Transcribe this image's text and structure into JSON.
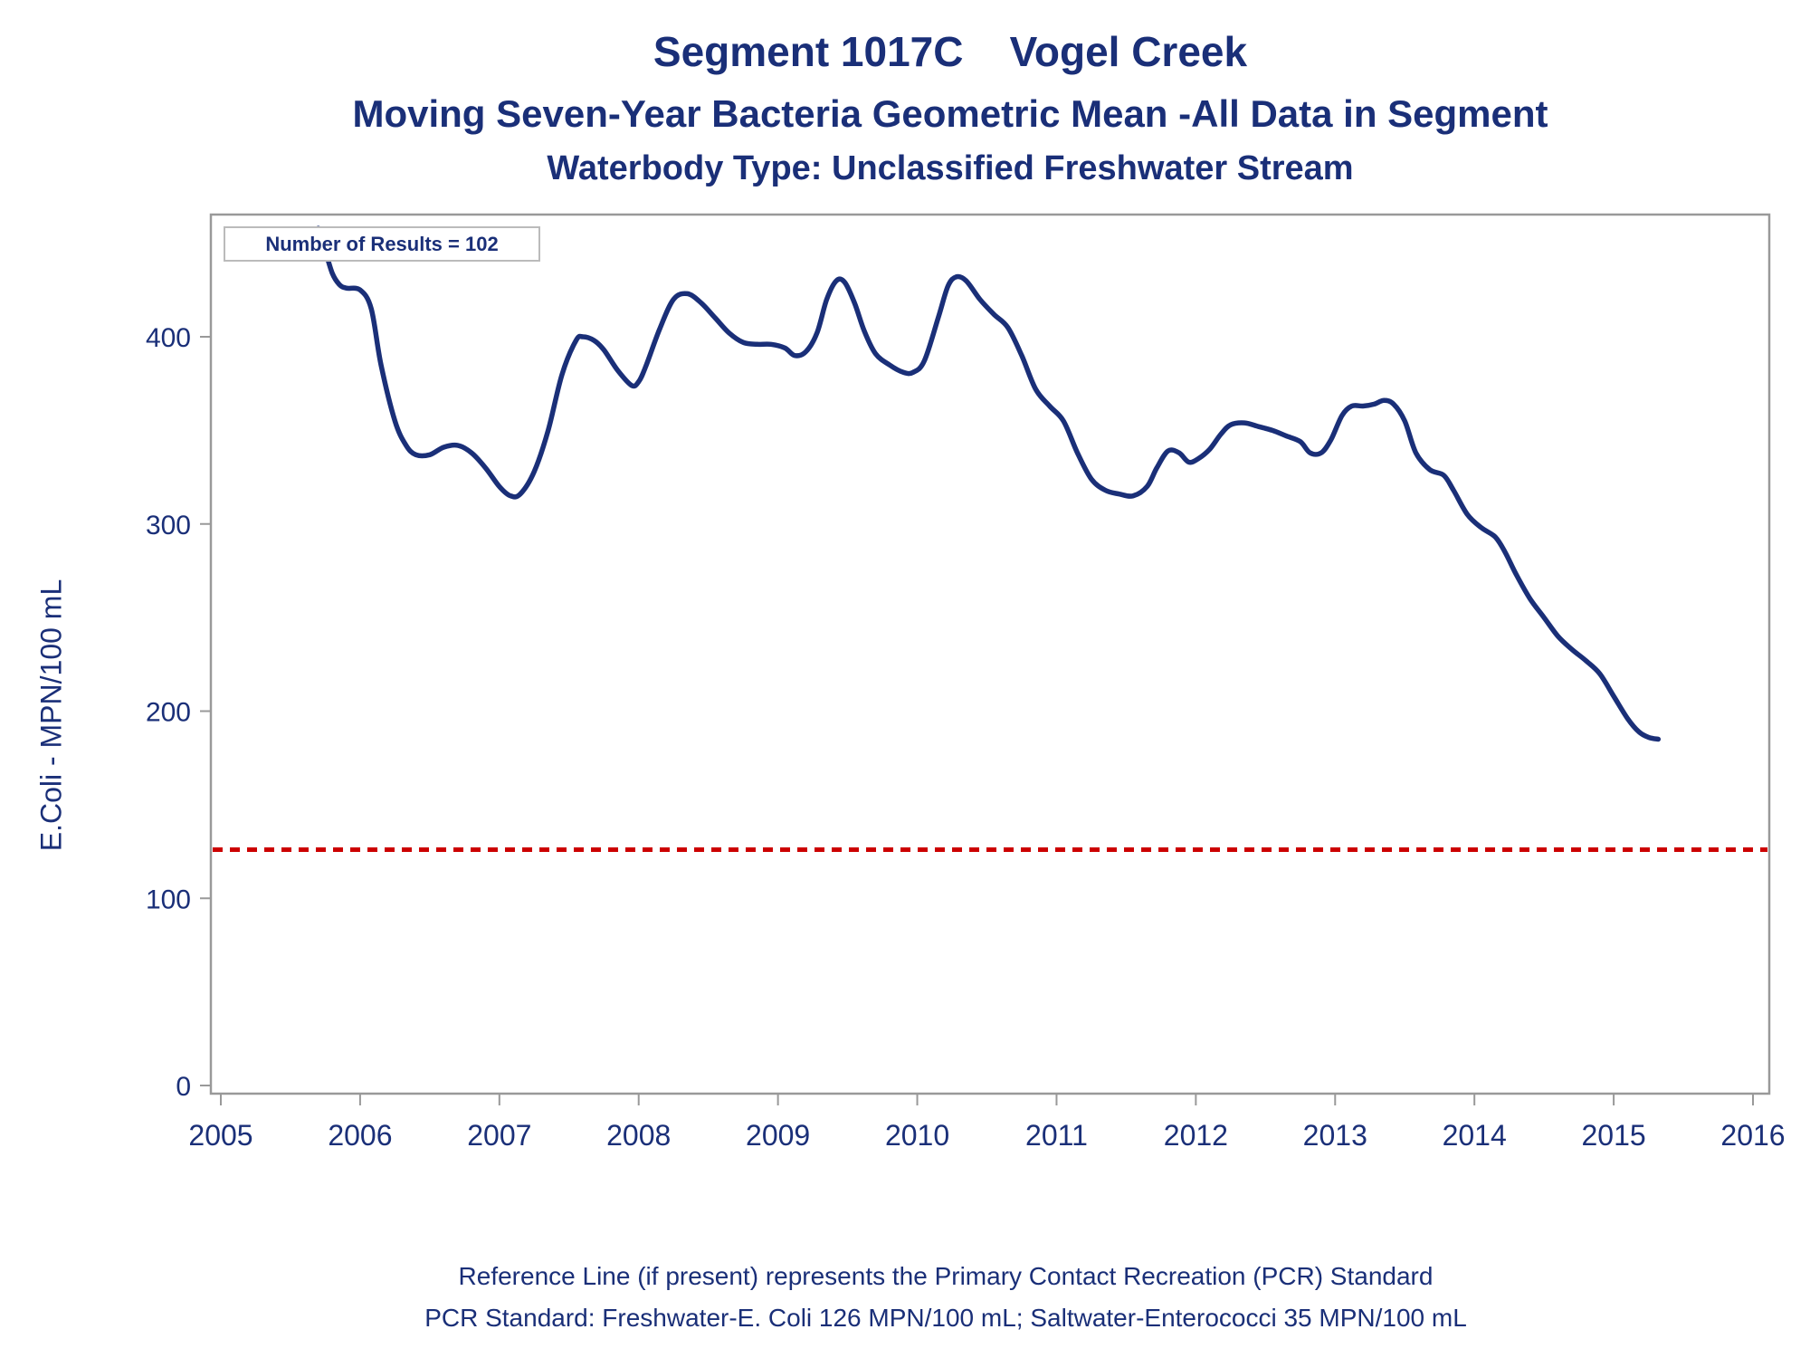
{
  "chart_data": {
    "type": "line",
    "title": "Segment 1017C    Vogel Creek",
    "subtitle": "Moving Seven-Year Bacteria Geometric Mean -All Data in Segment",
    "subtitle2": "Waterbody Type: Unclassified Freshwater Stream",
    "xlabel": "",
    "ylabel": "E.Coli - MPN/100 mL",
    "xlim": [
      2005,
      2016
    ],
    "ylim": [
      -5,
      465
    ],
    "x_ticks": [
      "2005",
      "2006",
      "2007",
      "2008",
      "2009",
      "2010",
      "2011",
      "2012",
      "2013",
      "2014",
      "2015",
      "2016"
    ],
    "y_ticks": [
      "0",
      "100",
      "200",
      "300",
      "400"
    ],
    "annotation": "Number of Results = 102",
    "reference_line": {
      "y": 126,
      "color": "#cc0000",
      "style": "dashed"
    },
    "series": [
      {
        "color": "#1a2f78",
        "points": [
          [
            2005.7,
            458
          ],
          [
            2005.75,
            446
          ],
          [
            2005.8,
            434
          ],
          [
            2005.85,
            428
          ],
          [
            2005.9,
            426
          ],
          [
            2006.0,
            425
          ],
          [
            2006.08,
            415
          ],
          [
            2006.15,
            385
          ],
          [
            2006.25,
            355
          ],
          [
            2006.33,
            342
          ],
          [
            2006.4,
            337
          ],
          [
            2006.5,
            337
          ],
          [
            2006.6,
            341
          ],
          [
            2006.7,
            342
          ],
          [
            2006.8,
            338
          ],
          [
            2006.9,
            330
          ],
          [
            2007.0,
            320
          ],
          [
            2007.08,
            315
          ],
          [
            2007.15,
            316
          ],
          [
            2007.25,
            328
          ],
          [
            2007.35,
            350
          ],
          [
            2007.45,
            380
          ],
          [
            2007.55,
            398
          ],
          [
            2007.6,
            400
          ],
          [
            2007.68,
            398
          ],
          [
            2007.75,
            393
          ],
          [
            2007.85,
            382
          ],
          [
            2007.95,
            374
          ],
          [
            2008.0,
            376
          ],
          [
            2008.05,
            384
          ],
          [
            2008.15,
            404
          ],
          [
            2008.25,
            420
          ],
          [
            2008.35,
            423
          ],
          [
            2008.45,
            418
          ],
          [
            2008.55,
            410
          ],
          [
            2008.65,
            402
          ],
          [
            2008.75,
            397
          ],
          [
            2008.85,
            396
          ],
          [
            2008.95,
            396
          ],
          [
            2009.05,
            394
          ],
          [
            2009.12,
            390
          ],
          [
            2009.2,
            392
          ],
          [
            2009.28,
            402
          ],
          [
            2009.35,
            420
          ],
          [
            2009.42,
            430
          ],
          [
            2009.48,
            429
          ],
          [
            2009.55,
            418
          ],
          [
            2009.62,
            403
          ],
          [
            2009.7,
            391
          ],
          [
            2009.8,
            385
          ],
          [
            2009.9,
            381
          ],
          [
            2009.97,
            381
          ],
          [
            2010.05,
            387
          ],
          [
            2010.15,
            410
          ],
          [
            2010.22,
            427
          ],
          [
            2010.28,
            432
          ],
          [
            2010.35,
            430
          ],
          [
            2010.45,
            420
          ],
          [
            2010.55,
            412
          ],
          [
            2010.65,
            405
          ],
          [
            2010.75,
            390
          ],
          [
            2010.85,
            372
          ],
          [
            2010.95,
            363
          ],
          [
            2011.05,
            355
          ],
          [
            2011.15,
            338
          ],
          [
            2011.25,
            324
          ],
          [
            2011.35,
            318
          ],
          [
            2011.45,
            316
          ],
          [
            2011.55,
            315
          ],
          [
            2011.65,
            320
          ],
          [
            2011.72,
            330
          ],
          [
            2011.8,
            339
          ],
          [
            2011.88,
            338
          ],
          [
            2011.95,
            333
          ],
          [
            2012.02,
            335
          ],
          [
            2012.1,
            340
          ],
          [
            2012.18,
            348
          ],
          [
            2012.25,
            353
          ],
          [
            2012.35,
            354
          ],
          [
            2012.45,
            352
          ],
          [
            2012.55,
            350
          ],
          [
            2012.65,
            347
          ],
          [
            2012.75,
            344
          ],
          [
            2012.82,
            338
          ],
          [
            2012.9,
            338
          ],
          [
            2012.97,
            345
          ],
          [
            2013.05,
            358
          ],
          [
            2013.12,
            363
          ],
          [
            2013.2,
            363
          ],
          [
            2013.28,
            364
          ],
          [
            2013.35,
            366
          ],
          [
            2013.42,
            364
          ],
          [
            2013.5,
            355
          ],
          [
            2013.58,
            338
          ],
          [
            2013.68,
            329
          ],
          [
            2013.78,
            326
          ],
          [
            2013.85,
            318
          ],
          [
            2013.95,
            305
          ],
          [
            2014.05,
            298
          ],
          [
            2014.15,
            293
          ],
          [
            2014.22,
            285
          ],
          [
            2014.3,
            273
          ],
          [
            2014.4,
            260
          ],
          [
            2014.5,
            250
          ],
          [
            2014.6,
            240
          ],
          [
            2014.7,
            233
          ],
          [
            2014.8,
            227
          ],
          [
            2014.9,
            220
          ],
          [
            2015.0,
            208
          ],
          [
            2015.1,
            196
          ],
          [
            2015.18,
            189
          ],
          [
            2015.25,
            186
          ],
          [
            2015.32,
            185
          ]
        ]
      }
    ]
  },
  "footnotes": {
    "line1": "Reference Line (if present) represents the Primary Contact Recreation (PCR) Standard",
    "line2": "PCR Standard: Freshwater-E. Coli 126 MPN/100 mL; Saltwater-Enterococci 35 MPN/100 mL"
  },
  "colors": {
    "text": "#1a2f78",
    "frame": "#999999",
    "series": "#1a2f78",
    "reference": "#cc0000"
  }
}
